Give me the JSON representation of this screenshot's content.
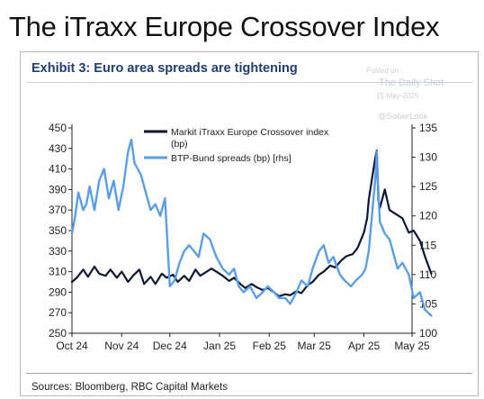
{
  "headline": "The iTraxx Europe Crossover Index",
  "exhibit_title": "Exhibit 3: Euro area spreads are tightening",
  "watermark": {
    "posted_on": "Posted on",
    "publisher": "The Daily Shot",
    "date": "15-May-2025",
    "handle": "@SoberLook"
  },
  "source": "Sources: Bloomberg, RBC Capital Markets",
  "chart_data": {
    "type": "line",
    "x_ticks": [
      "Oct 24",
      "Nov 24",
      "Dec 24",
      "Jan 25",
      "Feb 25",
      "Mar 25",
      "Apr 25",
      "May 25"
    ],
    "y_left": {
      "ylim": [
        250,
        450
      ],
      "ticks": [
        250,
        270,
        290,
        310,
        330,
        350,
        370,
        390,
        410,
        430,
        450
      ]
    },
    "y_right": {
      "ylim": [
        100,
        135
      ],
      "ticks": [
        100,
        105,
        110,
        115,
        120,
        125,
        130,
        135
      ]
    },
    "legend_position": "top-center",
    "colors": {
      "itraxx": "#0b1733",
      "btp": "#5b9ee8"
    },
    "series": [
      {
        "key": "itraxx",
        "name_line1": "Markit iTraxx Europe Crossover index",
        "name_line2": "(bp)",
        "axis": "left",
        "x": [
          "2024-10-01",
          "2024-10-04",
          "2024-10-08",
          "2024-10-11",
          "2024-10-15",
          "2024-10-18",
          "2024-10-22",
          "2024-10-25",
          "2024-10-29",
          "2024-11-01",
          "2024-11-05",
          "2024-11-08",
          "2024-11-12",
          "2024-11-15",
          "2024-11-19",
          "2024-11-22",
          "2024-11-26",
          "2024-11-29",
          "2024-12-03",
          "2024-12-06",
          "2024-12-10",
          "2024-12-13",
          "2024-12-17",
          "2024-12-20",
          "2024-12-27",
          "2025-01-03",
          "2025-01-07",
          "2025-01-10",
          "2025-01-14",
          "2025-01-17",
          "2025-01-21",
          "2025-01-24",
          "2025-01-28",
          "2025-01-31",
          "2025-02-04",
          "2025-02-07",
          "2025-02-11",
          "2025-02-14",
          "2025-02-18",
          "2025-02-21",
          "2025-02-25",
          "2025-02-28",
          "2025-03-04",
          "2025-03-07",
          "2025-03-11",
          "2025-03-14",
          "2025-03-18",
          "2025-03-21",
          "2025-03-25",
          "2025-03-28",
          "2025-04-01",
          "2025-04-03",
          "2025-04-04",
          "2025-04-07",
          "2025-04-08",
          "2025-04-09",
          "2025-04-10",
          "2025-04-11",
          "2025-04-14",
          "2025-04-17",
          "2025-04-22",
          "2025-04-25",
          "2025-04-29",
          "2025-05-02",
          "2025-05-06",
          "2025-05-09",
          "2025-05-13"
        ],
        "values": [
          300,
          304,
          312,
          305,
          315,
          308,
          306,
          312,
          304,
          310,
          300,
          306,
          312,
          298,
          305,
          298,
          308,
          304,
          307,
          300,
          306,
          301,
          312,
          306,
          313,
          306,
          301,
          304,
          298,
          294,
          298,
          295,
          292,
          294,
          290,
          286,
          288,
          287,
          291,
          289,
          297,
          300,
          307,
          310,
          316,
          314,
          321,
          325,
          327,
          333,
          348,
          362,
          380,
          410,
          420,
          428,
          380,
          372,
          390,
          370,
          365,
          362,
          348,
          350,
          340,
          325,
          308
        ]
      },
      {
        "key": "btp",
        "name": "BTP-Bund spreads (bp) [rhs]",
        "axis": "right",
        "x": [
          "2024-10-01",
          "2024-10-03",
          "2024-10-05",
          "2024-10-08",
          "2024-10-10",
          "2024-10-12",
          "2024-10-15",
          "2024-10-18",
          "2024-10-21",
          "2024-10-24",
          "2024-10-27",
          "2024-10-30",
          "2024-11-02",
          "2024-11-05",
          "2024-11-07",
          "2024-11-09",
          "2024-11-11",
          "2024-11-13",
          "2024-11-16",
          "2024-11-19",
          "2024-11-22",
          "2024-11-25",
          "2024-11-28",
          "2024-12-01",
          "2024-12-04",
          "2024-12-07",
          "2024-12-10",
          "2024-12-13",
          "2024-12-16",
          "2024-12-19",
          "2024-12-22",
          "2024-12-26",
          "2024-12-30",
          "2025-01-03",
          "2025-01-07",
          "2025-01-10",
          "2025-01-13",
          "2025-01-16",
          "2025-01-20",
          "2025-01-24",
          "2025-01-28",
          "2025-01-31",
          "2025-02-04",
          "2025-02-07",
          "2025-02-11",
          "2025-02-14",
          "2025-02-18",
          "2025-02-21",
          "2025-02-25",
          "2025-02-28",
          "2025-03-04",
          "2025-03-07",
          "2025-03-10",
          "2025-03-13",
          "2025-03-17",
          "2025-03-20",
          "2025-03-24",
          "2025-03-27",
          "2025-03-31",
          "2025-04-02",
          "2025-04-04",
          "2025-04-07",
          "2025-04-08",
          "2025-04-09",
          "2025-04-10",
          "2025-04-11",
          "2025-04-14",
          "2025-04-17",
          "2025-04-22",
          "2025-04-25",
          "2025-04-29",
          "2025-05-02",
          "2025-05-06",
          "2025-05-09",
          "2025-05-13"
        ],
        "values": [
          117,
          120,
          124,
          121,
          122,
          125,
          121,
          126,
          128,
          123,
          126,
          121,
          125,
          131,
          133,
          129,
          128,
          127,
          124,
          121,
          122,
          120,
          123,
          108,
          109,
          112,
          114,
          115,
          114,
          113,
          117,
          116,
          113,
          111,
          110,
          111,
          108,
          107,
          108,
          106,
          107,
          108,
          107,
          106,
          106,
          105,
          107,
          109,
          108,
          111,
          114,
          115,
          112,
          113,
          110,
          109,
          108,
          109,
          110,
          111,
          114,
          123,
          126,
          131,
          124,
          119,
          117,
          116,
          111,
          112,
          110,
          106,
          107,
          104,
          103
        ]
      }
    ]
  }
}
